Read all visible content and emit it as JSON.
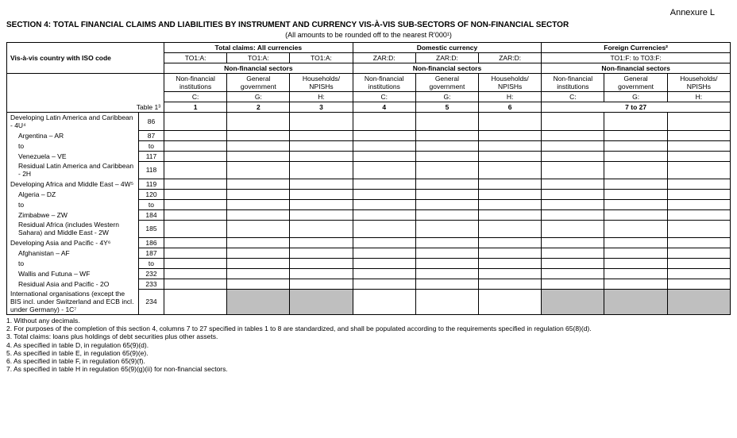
{
  "annexure": "Annexure L",
  "section_title": "SECTION 4: TOTAL FINANCIAL CLAIMS AND LIABILITIES BY INSTRUMENT AND CURRENCY VIS-À-VIS SUB-SECTORS OF NON-FINANCIAL SECTOR",
  "subtitle": "(All amounts to be rounded off to the nearest R'000¹)",
  "vis_label": "Vis-à-vis country with  ISO code",
  "table_ref": "Table 1³",
  "groups": {
    "g1": {
      "title": "Total claims: All currencies",
      "codes": [
        "TO1:A:",
        "TO1:A:",
        "TO1:A:"
      ]
    },
    "g2": {
      "title": "Domestic currency",
      "codes": [
        "ZAR:D:",
        "ZAR:D:",
        "ZAR:D:"
      ]
    },
    "g3": {
      "title": "Foreign Currencies²",
      "codes": "TO1:F: to TO3:F:"
    }
  },
  "sector_label": "Non-financial sectors",
  "cols": {
    "c1": "Non-financial institutions",
    "c2": "General government",
    "c3": "Households/ NPISHs",
    "codeC": "C:",
    "codeG": "G:",
    "codeH": "H:",
    "n1": "1",
    "n2": "2",
    "n3": "3",
    "n4": "4",
    "n5": "5",
    "n6": "6",
    "n7": "7 to 27"
  },
  "rows": [
    {
      "label": "Developing Latin America and Caribbean - 4U⁴",
      "code": "86",
      "indent": false
    },
    {
      "label": "Argentina – AR",
      "code": "87",
      "indent": true
    },
    {
      "label": "to",
      "code": "to",
      "indent": true
    },
    {
      "label": "Venezuela – VE",
      "code": "117",
      "indent": true
    },
    {
      "label": "Residual Latin America and Caribbean - 2H",
      "code": "118",
      "indent": true
    },
    {
      "label": "Developing Africa and Middle East – 4W⁵",
      "code": "119",
      "indent": false
    },
    {
      "label": "Algeria – DZ",
      "code": "120",
      "indent": true
    },
    {
      "label": "to",
      "code": "to",
      "indent": true
    },
    {
      "label": "Zimbabwe – ZW",
      "code": "184",
      "indent": true
    },
    {
      "label": "Residual Africa (includes Western Sahara) and Middle East - 2W",
      "code": "185",
      "indent": true
    },
    {
      "label": "Developing Asia and Pacific  - 4Y⁶",
      "code": "186",
      "indent": false
    },
    {
      "label": "Afghanistan – AF",
      "code": "187",
      "indent": true
    },
    {
      "label": "to",
      "code": "to",
      "indent": true
    },
    {
      "label": "Wallis and Futuna – WF",
      "code": "232",
      "indent": true
    },
    {
      "label": "Residual Asia and Pacific - 2O",
      "code": "233",
      "indent": true
    },
    {
      "label": "International organisations (except the BIS incl. under Switzerland and ECB incl. under Germany) - 1C⁷",
      "code": "234",
      "indent": false,
      "shade": true
    }
  ],
  "footnotes": [
    "1.   Without any decimals.",
    "2.   For purposes of the completion of this section 4, columns 7 to 27 specified in tables 1 to 8 are standardized, and shall be populated according to the requirements specified in regulation 65(8)(d).",
    "3.   Total claims: loans plus holdings of debt securities plus other assets.",
    "4.   As specified in table D, in regulation 65(9)(d).",
    "5.   As specified in table E, in regulation 65(9)(e).",
    "6.   As specified in table F, in regulation 65(9)(f).",
    "7.   As specified in table H in regulation 65(9)(g)(ii) for non-financial sectors."
  ]
}
